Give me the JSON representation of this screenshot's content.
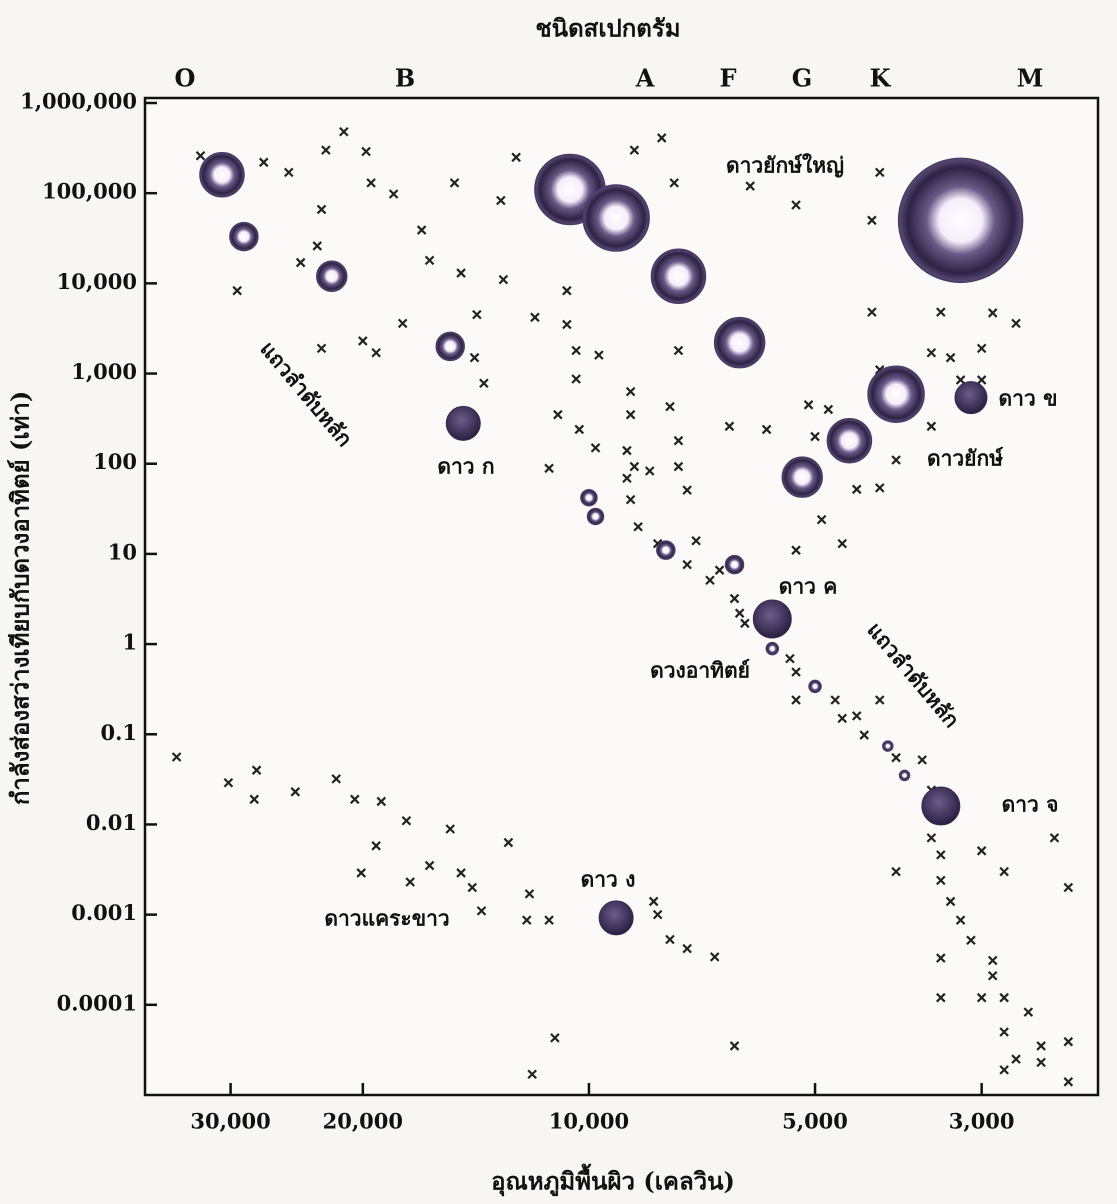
{
  "chart_data": {
    "type": "scatter",
    "title": "ชนิดสเปกตรัม",
    "spectral_classes": [
      "O",
      "B",
      "A",
      "F",
      "G",
      "K",
      "M"
    ],
    "x_label": "อุณหภูมิพื้นผิว (เคลวิน)",
    "y_label": "กำลังส่องสว่างเทียบกับดวงอาทิตย์ (เท่า)",
    "xscale": "log",
    "yscale": "log",
    "x_reversed": true,
    "grid": false,
    "xlim": [
      39000,
      2100
    ],
    "ylim": [
      1e-05,
      1000000
    ],
    "xticks": [
      {
        "value": 30000,
        "label": "30,000"
      },
      {
        "value": 20000,
        "label": "20,000"
      },
      {
        "value": 10000,
        "label": "10,000"
      },
      {
        "value": 5000,
        "label": "5,000"
      },
      {
        "value": 3000,
        "label": "3,000"
      }
    ],
    "yticks": [
      {
        "value": 1000000,
        "label": "1,000,000"
      },
      {
        "value": 100000,
        "label": "100,000"
      },
      {
        "value": 10000,
        "label": "10,000"
      },
      {
        "value": 1000,
        "label": "1,000"
      },
      100,
      10,
      1,
      0.1,
      0.01,
      0.001,
      0.0001
    ],
    "series": [
      {
        "marker": "cross",
        "color": "#222222",
        "x": [
          35400,
          30200,
          27700,
          27900,
          24600,
          21700,
          20500,
          18900,
          17500,
          19200,
          20100,
          17300,
          16300,
          15300,
          14800,
          14300,
          13900,
          12800,
          12000,
          12100,
          11300,
          11100,
          11900,
          8200,
          8100,
          7800,
          7400,
          6800,
          6400,
          32900,
          27100,
          25100,
          22400,
          21200,
          19800,
          19500,
          18200,
          15100,
          12500,
          13100,
          8700,
          8000,
          7700,
          6100,
          5300,
          4100,
          4200,
          29400,
          29400,
          22700,
          23000,
          24200,
          22700,
          20000,
          19200,
          17700,
          16300,
          16700,
          14800,
          14100,
          13800,
          14200,
          13000,
          11800,
          10700,
          10700,
          10400,
          10400,
          9700,
          11300,
          11000,
          10300,
          9800,
          8800,
          8700,
          8800,
          8300,
          7600,
          7600,
          7400,
          7800,
          7600,
          6500,
          5800,
          5100,
          4800,
          5000,
          4900,
          4600,
          5300,
          4400,
          4100,
          3900,
          4100,
          4200,
          3500,
          3300,
          3200,
          3000,
          3000,
          2700,
          2900,
          3400,
          3500,
          8900,
          8900,
          8800,
          8600,
          8100,
          7400,
          7200,
          6900,
          6700,
          6400,
          6300,
          6200,
          5400,
          5300,
          5300,
          4700,
          4600,
          4400,
          4300,
          4100,
          3900,
          3600,
          3500,
          3900,
          3500,
          3400,
          3400,
          3300,
          3200,
          3100,
          2900,
          2900,
          3400,
          3400,
          3000,
          2800,
          2800,
          2400,
          2300,
          2800,
          2600,
          2500,
          2700,
          2500,
          2300,
          2300,
          2800,
          3000
        ],
        "values": [
          0.056,
          0.029,
          0.04,
          0.019,
          0.023,
          0.032,
          0.019,
          0.018,
          0.011,
          0.0058,
          0.0029,
          0.0023,
          0.0035,
          0.0089,
          0.0029,
          0.002,
          0.0011,
          0.0063,
          0.0017,
          0.00087,
          0.00087,
          4.3e-05,
          1.7e-05,
          0.0014,
          0.001,
          0.00053,
          0.00042,
          0.00034,
          3.5e-05,
          260000,
          220000,
          170000,
          300000,
          480000,
          290000,
          130000,
          98000,
          130000,
          250000,
          83000,
          300000,
          410000,
          130000,
          120000,
          74000,
          170000,
          50000,
          35000,
          8300,
          66000,
          26000,
          17000,
          1900,
          2300,
          1700,
          3600,
          18000,
          39000,
          13000,
          4500,
          780,
          1500,
          11000,
          4200,
          8300,
          3500,
          870,
          1800,
          1600,
          89,
          350,
          240,
          150,
          630,
          93,
          350,
          83,
          93,
          180,
          51,
          430,
          1800,
          260,
          240,
          450,
          400,
          200,
          24,
          13,
          11,
          52,
          54,
          110,
          1100,
          4800,
          1700,
          1500,
          850,
          850,
          1900,
          3600,
          4700,
          4800,
          260,
          140,
          69,
          40,
          20,
          13,
          7.6,
          14,
          5.1,
          6.6,
          3.2,
          2.2,
          1.7,
          0.69,
          0.49,
          0.24,
          0.24,
          0.15,
          0.16,
          0.098,
          0.24,
          0.055,
          0.052,
          0.024,
          0.003,
          0.0071,
          0.0046,
          0.0024,
          0.0014,
          0.00087,
          0.00052,
          0.00031,
          0.00021,
          0.00033,
          0.00012,
          0.00012,
          0.00012,
          0.003,
          0.0071,
          0.002,
          5e-05,
          8.3e-05,
          3.5e-05,
          2.5e-05,
          2.3e-05,
          3.9e-05,
          1.4e-05,
          1.9e-05,
          0.0051
        ]
      },
      {
        "marker": "ring",
        "color": "#4a3a66",
        "x": [
          30800,
          28800,
          22000,
          15300,
          10600,
          9200,
          7600,
          6300,
          5200,
          4500,
          3900,
          3200,
          10000,
          9800,
          7900,
          6400,
          5700,
          5000,
          4000,
          3800
        ],
        "values": [
          160000,
          33000,
          12000,
          2000,
          110000,
          53000,
          12000,
          2200,
          71,
          180,
          590,
          50000,
          42,
          26,
          11,
          7.6,
          0.89,
          0.34,
          0.074,
          0.035
        ],
        "sizes": [
          22,
          14,
          15,
          14,
          35,
          33,
          27,
          25,
          20,
          22,
          28,
          62,
          8,
          8,
          9,
          9,
          6,
          6,
          5,
          5
        ]
      },
      {
        "marker": "dot",
        "color": "#3a2a55",
        "x": [
          14700,
          3100,
          5700,
          9200,
          3400
        ],
        "values": [
          280,
          540,
          1.9,
          0.00092,
          0.016
        ],
        "sizes": [
          17,
          16,
          19,
          17,
          19
        ]
      }
    ],
    "annotations": [
      "ดาวยักษ์ใหญ่",
      "แถวลำดับหลัก",
      "ดาว ก",
      "ดาว ข",
      "ดาวยักษ์",
      "ดาว ค",
      "ดวงอาทิตย์",
      "แถวลำดับหลัก",
      "ดาว จ",
      "ดาว ง",
      "ดาวแคระขาว"
    ]
  }
}
